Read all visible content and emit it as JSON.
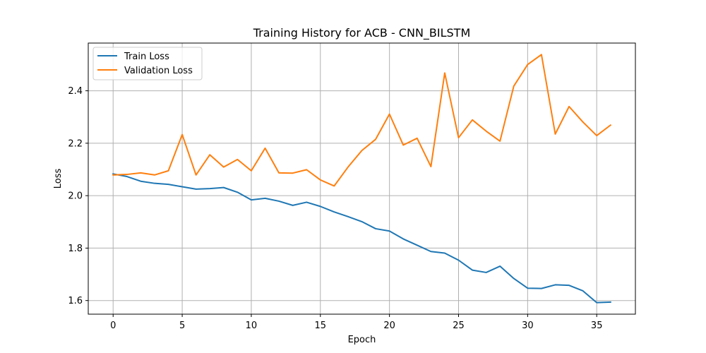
{
  "chart_data": {
    "type": "line",
    "title": "Training History for ACB - CNN_BILSTM",
    "xlabel": "Epoch",
    "ylabel": "Loss",
    "xlim": [
      -1.8,
      37.8
    ],
    "ylim": [
      1.548,
      2.582
    ],
    "xticks": [
      0,
      5,
      10,
      15,
      20,
      25,
      30,
      35
    ],
    "yticks": [
      1.6,
      1.8,
      2.0,
      2.2,
      2.4
    ],
    "xtick_labels": [
      "0",
      "5",
      "10",
      "15",
      "20",
      "25",
      "30",
      "35"
    ],
    "ytick_labels": [
      "1.6",
      "1.8",
      "2.0",
      "2.2",
      "2.4"
    ],
    "grid": true,
    "legend_position": "upper-left",
    "x": [
      0,
      1,
      2,
      3,
      4,
      5,
      6,
      7,
      8,
      9,
      10,
      11,
      12,
      13,
      14,
      15,
      16,
      17,
      18,
      19,
      20,
      21,
      22,
      23,
      24,
      25,
      26,
      27,
      28,
      29,
      30,
      31,
      32,
      33,
      34,
      35,
      36
    ],
    "series": [
      {
        "name": "Train Loss",
        "color": "#1f77b4",
        "values": [
          2.083,
          2.073,
          2.055,
          2.047,
          2.043,
          2.034,
          2.025,
          2.027,
          2.031,
          2.013,
          1.984,
          1.99,
          1.979,
          1.963,
          1.975,
          1.959,
          1.938,
          1.92,
          1.901,
          1.874,
          1.865,
          1.835,
          1.811,
          1.787,
          1.781,
          1.754,
          1.716,
          1.707,
          1.731,
          1.684,
          1.647,
          1.646,
          1.66,
          1.658,
          1.637,
          1.592,
          1.594
        ]
      },
      {
        "name": "Validation Loss",
        "color": "#ff7f0e",
        "values": [
          2.079,
          2.081,
          2.087,
          2.079,
          2.095,
          2.233,
          2.079,
          2.156,
          2.109,
          2.138,
          2.095,
          2.181,
          2.087,
          2.086,
          2.099,
          2.06,
          2.037,
          2.109,
          2.172,
          2.215,
          2.311,
          2.193,
          2.219,
          2.111,
          2.468,
          2.221,
          2.289,
          2.246,
          2.208,
          2.418,
          2.5,
          2.538,
          2.235,
          2.34,
          2.281,
          2.229,
          2.269
        ]
      }
    ]
  }
}
